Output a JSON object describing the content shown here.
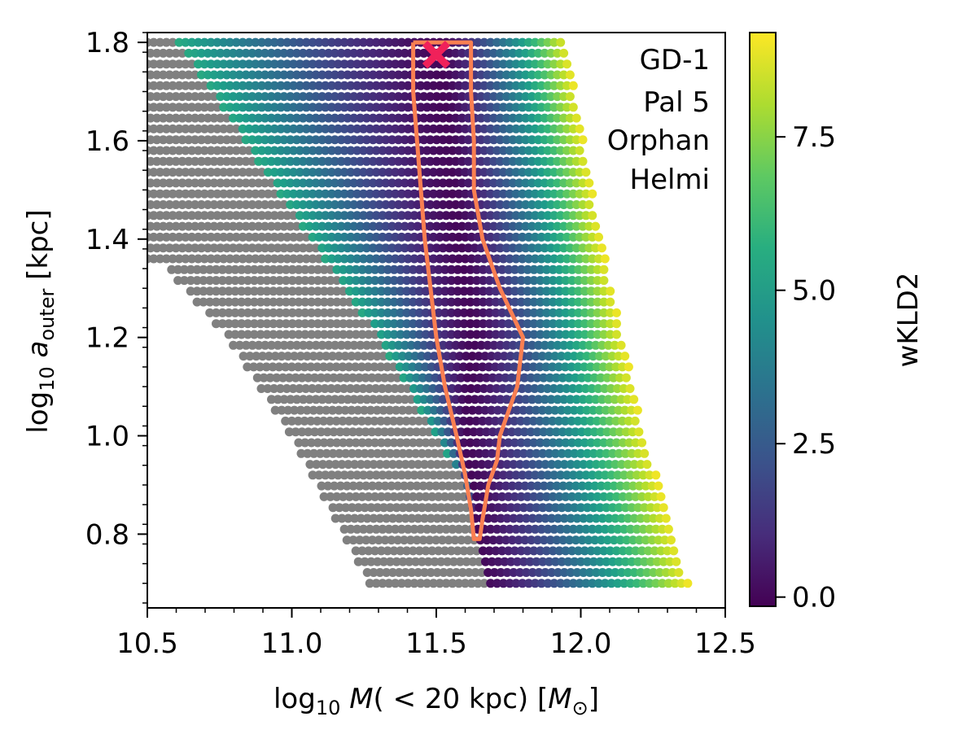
{
  "chart_data": {
    "type": "heatmap",
    "title": "",
    "xlabel": {
      "prefix": "log",
      "sub": "10",
      "var": "M",
      "rest": "( < 20 kpc) [",
      "unit": "M",
      "unit_sub": "⊙",
      "close": "]"
    },
    "ylabel": {
      "prefix": "log",
      "sub": "10",
      "var": "a",
      "var_sub": "outer",
      "rest": " [kpc]"
    },
    "xlim": [
      10.5,
      12.5
    ],
    "ylim": [
      0.65,
      1.82
    ],
    "x_ticks": [
      {
        "value": 10.5,
        "label": "10.5"
      },
      {
        "value": 11.0,
        "label": "11.0"
      },
      {
        "value": 11.5,
        "label": "11.5"
      },
      {
        "value": 12.0,
        "label": "12.0"
      },
      {
        "value": 12.5,
        "label": "12.5"
      }
    ],
    "y_ticks": [
      {
        "value": 0.8,
        "label": "0.8"
      },
      {
        "value": 1.0,
        "label": "1.0"
      },
      {
        "value": 1.2,
        "label": "1.2"
      },
      {
        "value": 1.4,
        "label": "1.4"
      },
      {
        "value": 1.6,
        "label": "1.6"
      },
      {
        "value": 1.8,
        "label": "1.8"
      }
    ],
    "colorbar": {
      "label": "wKLD2",
      "range": [
        -0.15,
        9.2
      ],
      "ticks": [
        {
          "value": 0.0,
          "label": "0.0"
        },
        {
          "value": 2.5,
          "label": "2.5"
        },
        {
          "value": 5.0,
          "label": "5.0"
        },
        {
          "value": 7.5,
          "label": "7.5"
        }
      ],
      "colormap": "viridis"
    },
    "legend_entries": [
      "GD-1",
      "Pal 5",
      "Orphan",
      "Helmi"
    ],
    "legend_position": "top-right",
    "grid": false,
    "field": {
      "y_range": [
        0.7,
        1.8
      ],
      "minimum_ridge": [
        {
          "y": 0.7,
          "x": 11.66
        },
        {
          "y": 1.0,
          "x": 11.6
        },
        {
          "y": 1.2,
          "x": 11.63
        },
        {
          "y": 1.5,
          "x": 11.56
        },
        {
          "y": 1.8,
          "x": 11.52
        }
      ],
      "valid_left_edge": [
        {
          "y": 0.7,
          "x": 11.27
        },
        {
          "y": 1.0,
          "x": 11.0
        },
        {
          "y": 1.2,
          "x": 10.78
        },
        {
          "y": 1.34,
          "x": 10.57
        },
        {
          "y": 1.36,
          "x": 10.5
        },
        {
          "y": 1.8,
          "x": 10.5
        }
      ],
      "colored_left_edge": [
        {
          "y": 0.7,
          "x": 11.68
        },
        {
          "y": 0.9,
          "x": 11.6
        },
        {
          "y": 1.2,
          "x": 11.3
        },
        {
          "y": 1.5,
          "x": 10.95
        },
        {
          "y": 1.8,
          "x": 10.61
        }
      ],
      "right_edge": [
        {
          "y": 0.7,
          "x": 12.37
        },
        {
          "y": 1.0,
          "x": 12.22
        },
        {
          "y": 1.4,
          "x": 12.07
        },
        {
          "y": 1.8,
          "x": 11.95
        }
      ],
      "left_edge_value": 5.5,
      "right_edge_value": 9.0,
      "masked_color": "#808080",
      "step_x": 0.022,
      "step_y": 0.022
    },
    "contour": {
      "color": "#f97f52",
      "points": [
        {
          "x": 11.42,
          "y": 1.8
        },
        {
          "x": 11.62,
          "y": 1.8
        },
        {
          "x": 11.62,
          "y": 1.7
        },
        {
          "x": 11.63,
          "y": 1.6
        },
        {
          "x": 11.63,
          "y": 1.5
        },
        {
          "x": 11.66,
          "y": 1.4
        },
        {
          "x": 11.72,
          "y": 1.3
        },
        {
          "x": 11.8,
          "y": 1.2
        },
        {
          "x": 11.78,
          "y": 1.1
        },
        {
          "x": 11.72,
          "y": 1.0
        },
        {
          "x": 11.71,
          "y": 0.95
        },
        {
          "x": 11.68,
          "y": 0.9
        },
        {
          "x": 11.66,
          "y": 0.83
        },
        {
          "x": 11.65,
          "y": 0.79
        },
        {
          "x": 11.63,
          "y": 0.79
        },
        {
          "x": 11.62,
          "y": 0.85
        },
        {
          "x": 11.6,
          "y": 0.92
        },
        {
          "x": 11.57,
          "y": 1.0
        },
        {
          "x": 11.53,
          "y": 1.1
        },
        {
          "x": 11.5,
          "y": 1.2
        },
        {
          "x": 11.48,
          "y": 1.3
        },
        {
          "x": 11.46,
          "y": 1.4
        },
        {
          "x": 11.44,
          "y": 1.55
        },
        {
          "x": 11.42,
          "y": 1.7
        },
        {
          "x": 11.42,
          "y": 1.8
        }
      ]
    },
    "best_fit_marker": {
      "x": 11.5,
      "y": 1.775,
      "symbol": "X",
      "color": "#f0215a"
    }
  }
}
